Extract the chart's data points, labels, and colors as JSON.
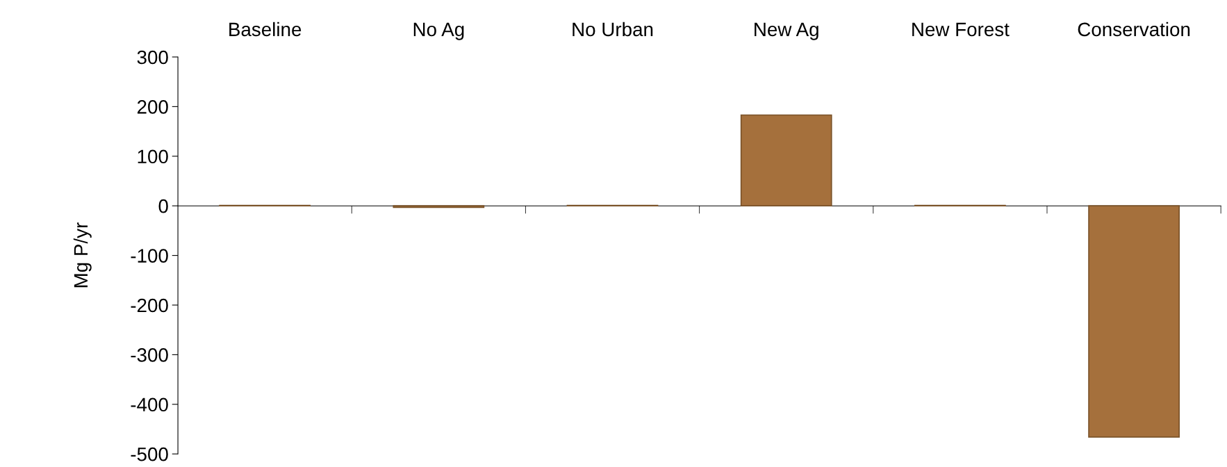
{
  "chart_data": {
    "type": "bar",
    "ylabel": "Mg P/yr",
    "categories": [
      "Baseline",
      "No Ag",
      "No Urban",
      "New Ag",
      "New Forest",
      "Conservation"
    ],
    "values": [
      1,
      -3,
      1,
      183,
      1,
      -466
    ],
    "color": "#a5703c",
    "ylim": [
      -500,
      300
    ],
    "yticks": [
      -500,
      -400,
      -300,
      -200,
      -100,
      0,
      100,
      200,
      300
    ]
  }
}
